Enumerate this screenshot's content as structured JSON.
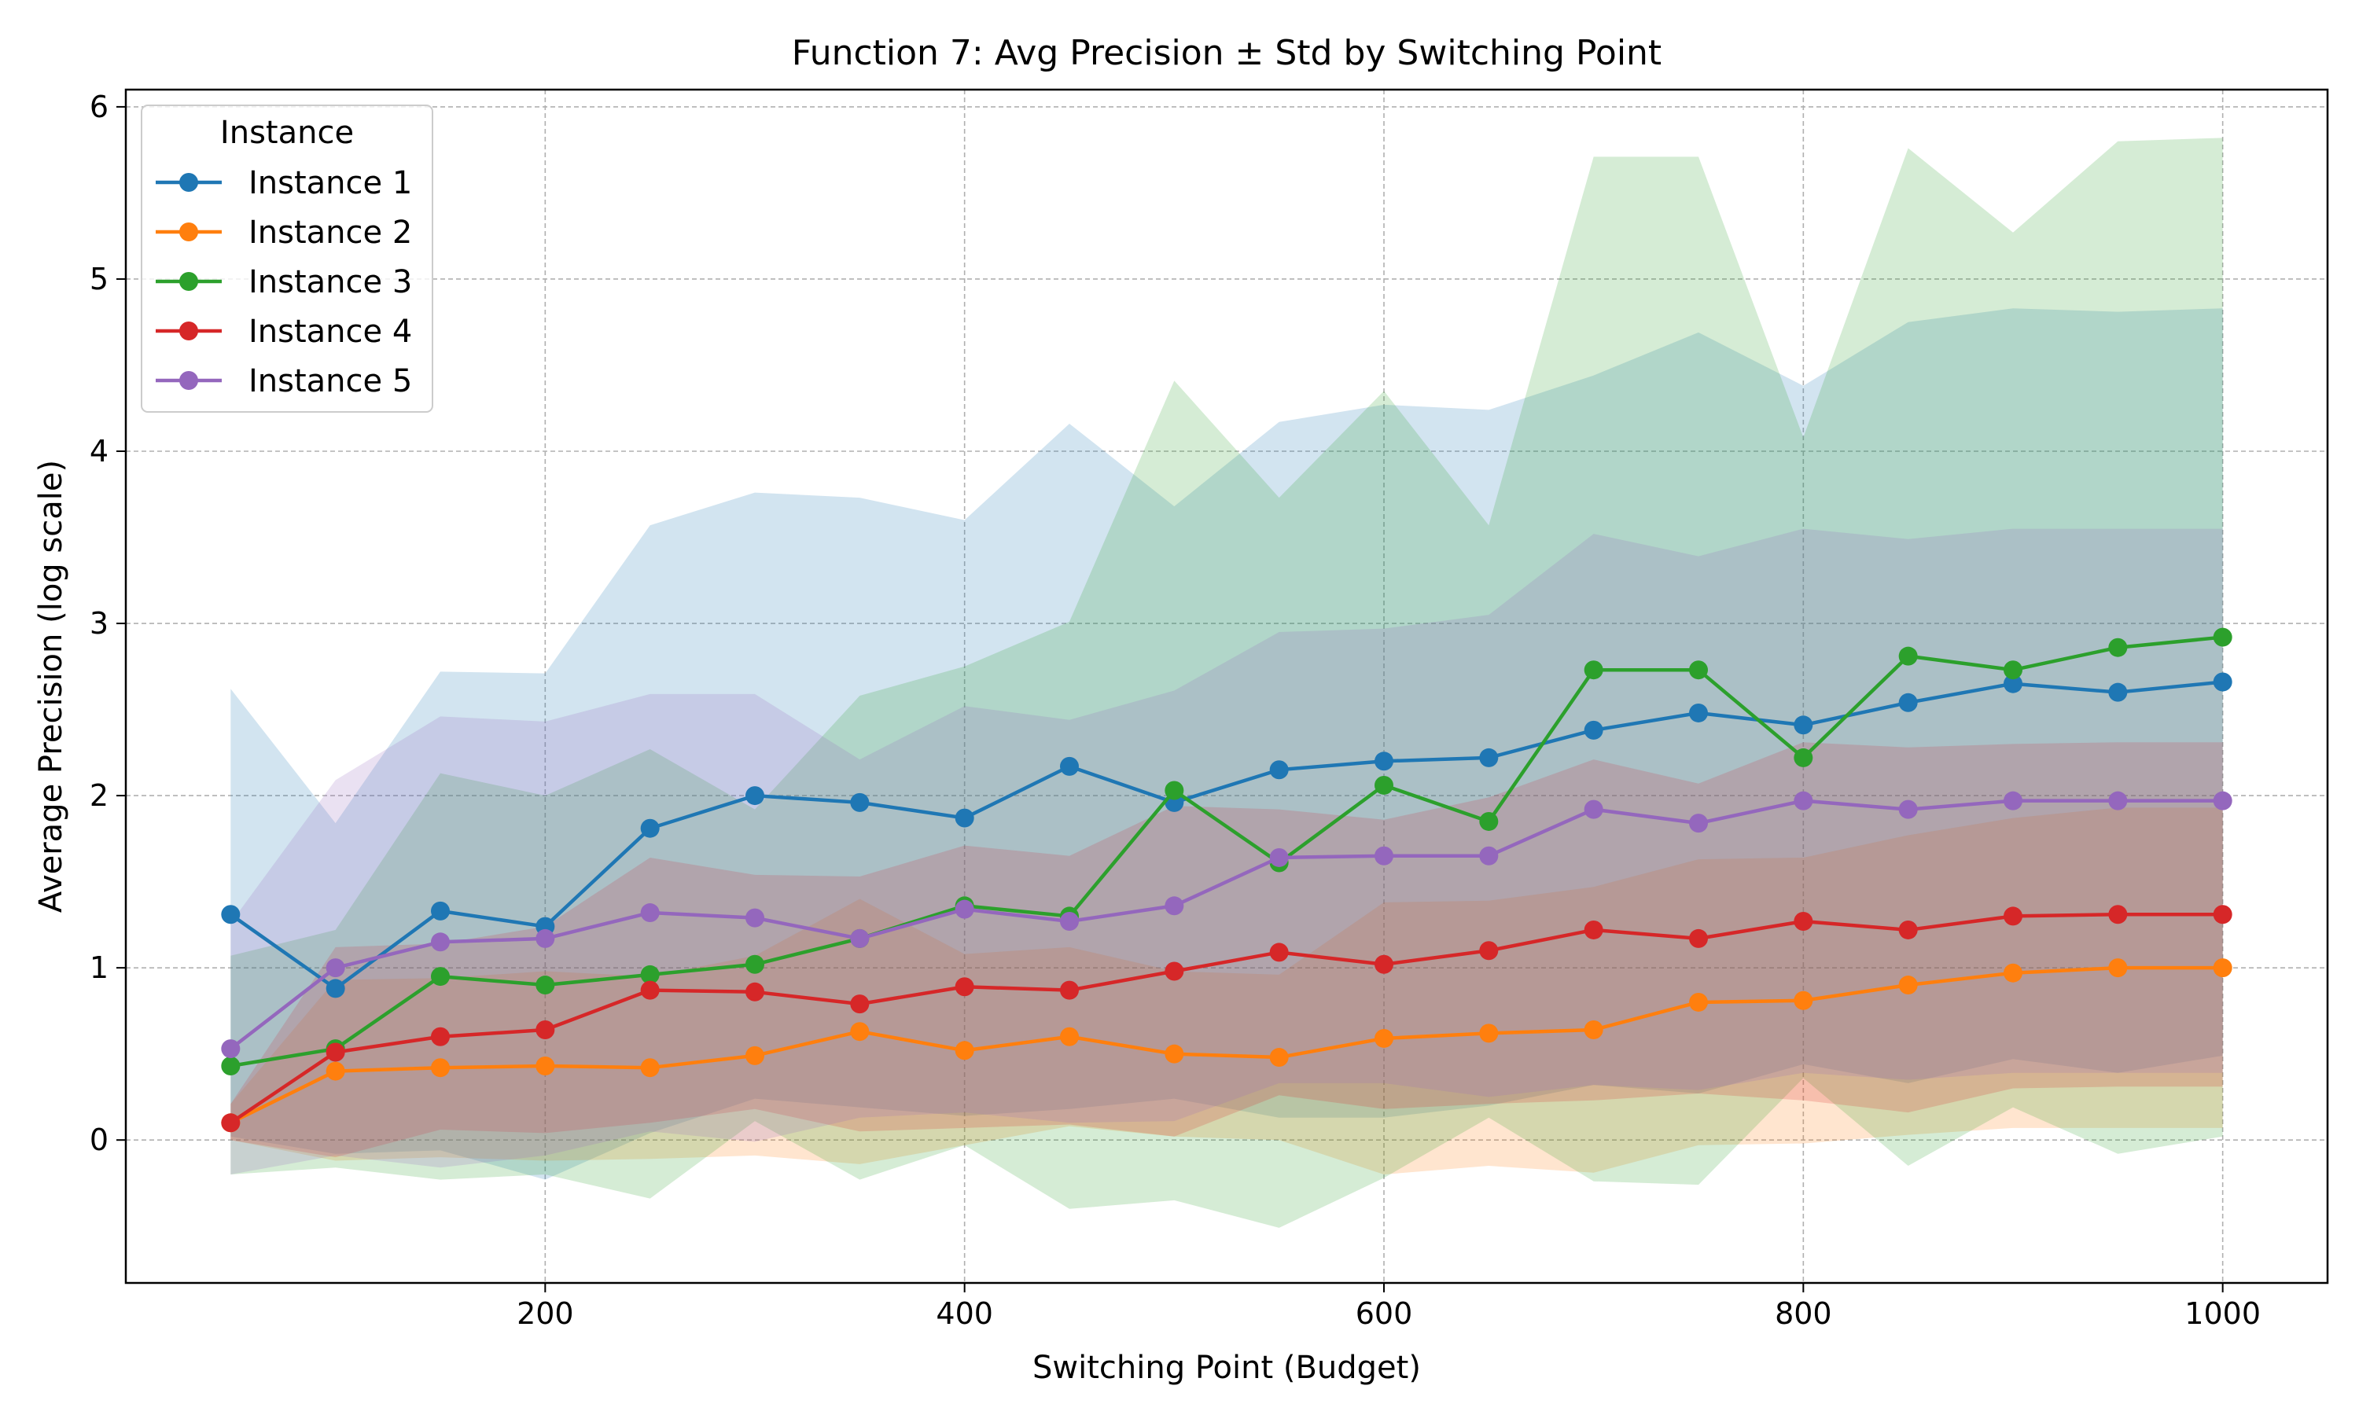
{
  "chart_data": {
    "type": "line",
    "title": "Function 7: Avg Precision ± Std by Switching Point",
    "xlabel": "Switching Point (Budget)",
    "ylabel": "Average Precision (log scale)",
    "xlim": [
      0,
      1050
    ],
    "ylim": [
      -0.83,
      6.1
    ],
    "xticks": [
      200,
      400,
      600,
      800,
      1000
    ],
    "yticks": [
      0,
      1,
      2,
      3,
      4,
      5,
      6
    ],
    "grid": true,
    "legend": {
      "title": "Instance",
      "placement": "top-left"
    },
    "x": [
      50,
      100,
      150,
      200,
      250,
      300,
      350,
      400,
      450,
      500,
      550,
      600,
      650,
      700,
      750,
      800,
      850,
      900,
      950,
      1000
    ],
    "series": [
      {
        "name": "Instance 1",
        "color": "#1f77b4",
        "values": [
          1.31,
          0.88,
          1.33,
          1.24,
          1.81,
          2.0,
          1.96,
          1.87,
          2.17,
          1.96,
          2.15,
          2.2,
          2.22,
          2.38,
          2.48,
          2.41,
          2.54,
          2.65,
          2.6,
          2.66
        ],
        "upper": [
          2.62,
          1.84,
          2.72,
          2.71,
          3.57,
          3.76,
          3.73,
          3.6,
          4.16,
          3.68,
          4.17,
          4.27,
          4.24,
          4.44,
          4.69,
          4.38,
          4.75,
          4.83,
          4.81,
          4.83
        ],
        "lower": [
          0.02,
          -0.08,
          -0.06,
          -0.23,
          0.04,
          0.24,
          0.19,
          0.14,
          0.18,
          0.24,
          0.13,
          0.13,
          0.2,
          0.32,
          0.27,
          0.44,
          0.33,
          0.47,
          0.39,
          0.49
        ]
      },
      {
        "name": "Instance 2",
        "color": "#ff7f0e",
        "values": [
          0.1,
          0.4,
          0.42,
          0.43,
          0.42,
          0.49,
          0.63,
          0.52,
          0.6,
          0.5,
          0.48,
          0.59,
          0.62,
          0.64,
          0.8,
          0.81,
          0.9,
          0.97,
          1.0,
          1.0
        ],
        "upper": [
          0.21,
          0.93,
          0.94,
          0.98,
          0.95,
          1.07,
          1.4,
          1.08,
          1.12,
          0.98,
          0.96,
          1.38,
          1.39,
          1.47,
          1.63,
          1.64,
          1.77,
          1.87,
          1.93,
          1.93
        ],
        "lower": [
          0.0,
          -0.12,
          -0.1,
          -0.12,
          -0.11,
          -0.09,
          -0.14,
          -0.03,
          0.08,
          0.02,
          0.0,
          -0.2,
          -0.15,
          -0.19,
          -0.03,
          -0.02,
          0.03,
          0.07,
          0.07,
          0.07
        ]
      },
      {
        "name": "Instance 3",
        "color": "#2ca02c",
        "values": [
          0.43,
          0.53,
          0.95,
          0.9,
          0.96,
          1.02,
          1.17,
          1.36,
          1.3,
          2.03,
          1.61,
          2.06,
          1.85,
          2.73,
          2.73,
          2.22,
          2.81,
          2.73,
          2.86,
          2.92
        ],
        "upper": [
          1.07,
          1.22,
          2.13,
          2.0,
          2.27,
          1.92,
          2.58,
          2.75,
          3.01,
          4.41,
          3.73,
          4.35,
          3.57,
          5.71,
          5.71,
          4.08,
          5.76,
          5.27,
          5.8,
          5.82
        ],
        "lower": [
          -0.2,
          -0.16,
          -0.23,
          -0.2,
          -0.34,
          0.11,
          -0.23,
          -0.03,
          -0.4,
          -0.35,
          -0.51,
          -0.22,
          0.13,
          -0.24,
          -0.26,
          0.36,
          -0.15,
          0.19,
          -0.08,
          0.02
        ]
      },
      {
        "name": "Instance 4",
        "color": "#d62728",
        "values": [
          0.1,
          0.51,
          0.6,
          0.64,
          0.87,
          0.86,
          0.79,
          0.89,
          0.87,
          0.98,
          1.09,
          1.02,
          1.1,
          1.22,
          1.17,
          1.27,
          1.22,
          1.3,
          1.31,
          1.31
        ],
        "upper": [
          0.21,
          1.12,
          1.14,
          1.24,
          1.64,
          1.54,
          1.53,
          1.71,
          1.65,
          1.94,
          1.92,
          1.86,
          1.99,
          2.21,
          2.07,
          2.31,
          2.28,
          2.3,
          2.31,
          2.31
        ],
        "lower": [
          0.0,
          -0.1,
          0.06,
          0.04,
          0.1,
          0.18,
          0.05,
          0.07,
          0.09,
          0.02,
          0.26,
          0.18,
          0.21,
          0.23,
          0.27,
          0.23,
          0.16,
          0.3,
          0.31,
          0.31
        ]
      },
      {
        "name": "Instance 5",
        "color": "#9467bd",
        "values": [
          0.53,
          1.0,
          1.15,
          1.17,
          1.32,
          1.29,
          1.17,
          1.34,
          1.27,
          1.36,
          1.64,
          1.65,
          1.65,
          1.92,
          1.84,
          1.97,
          1.92,
          1.97,
          1.97,
          1.97
        ],
        "upper": [
          1.26,
          2.09,
          2.46,
          2.43,
          2.59,
          2.59,
          2.21,
          2.52,
          2.44,
          2.61,
          2.95,
          2.97,
          3.05,
          3.52,
          3.39,
          3.55,
          3.49,
          3.55,
          3.55,
          3.55
        ],
        "lower": [
          -0.2,
          -0.09,
          -0.16,
          -0.09,
          0.05,
          -0.01,
          0.13,
          0.16,
          0.1,
          0.11,
          0.33,
          0.33,
          0.25,
          0.32,
          0.29,
          0.39,
          0.35,
          0.39,
          0.39,
          0.39
        ]
      }
    ]
  }
}
